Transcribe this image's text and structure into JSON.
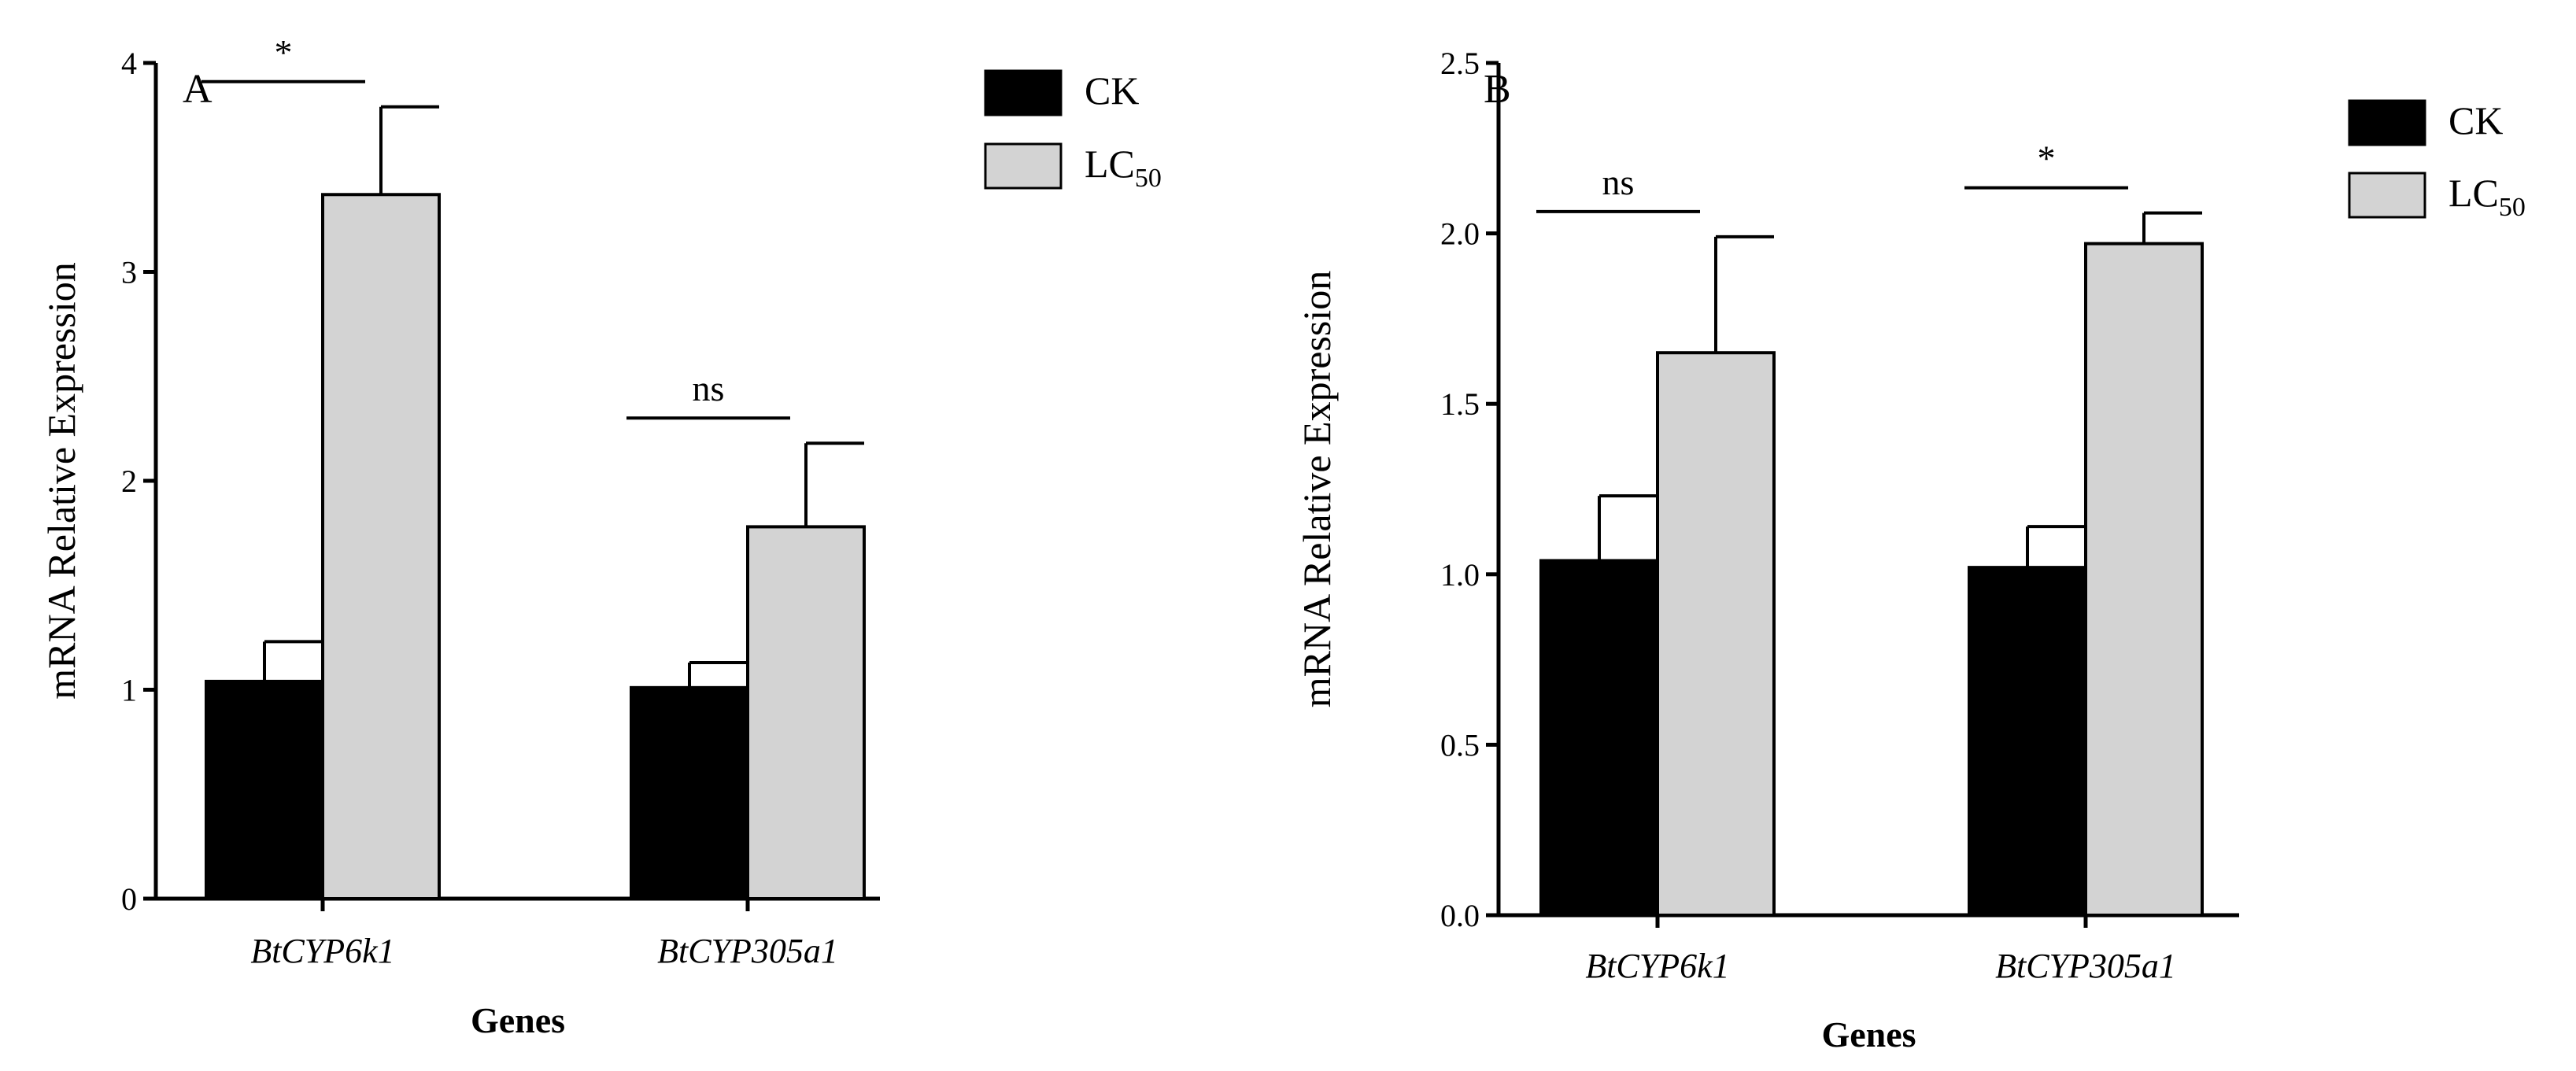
{
  "chart_data": [
    {
      "type": "bar",
      "panel_label": "A",
      "title": "",
      "xlabel": "Genes",
      "ylabel": "mRNA Relative Expression",
      "ylim": [
        0,
        4
      ],
      "yticks": [
        "0",
        "1",
        "2",
        "3",
        "4"
      ],
      "categories": [
        "BtCYP6k1",
        "BtCYP305a1"
      ],
      "series": [
        {
          "name": "CK",
          "values": [
            1.04,
            1.01
          ],
          "errors": [
            0.19,
            0.12
          ],
          "color": "#000000"
        },
        {
          "name": "LC50",
          "values": [
            3.37,
            1.78
          ],
          "errors": [
            0.42,
            0.4
          ],
          "color": "#d3d3d3"
        }
      ],
      "significance": [
        "*",
        "ns"
      ],
      "legend": [
        "CK",
        "LC50"
      ],
      "legend_position": "top-right",
      "grid": false
    },
    {
      "type": "bar",
      "panel_label": "B",
      "title": "",
      "xlabel": "Genes",
      "ylabel": "mRNA Relative Expression",
      "ylim": [
        0,
        2.5
      ],
      "yticks": [
        "0.0",
        "0.5",
        "1.0",
        "1.5",
        "2.0",
        "2.5"
      ],
      "categories": [
        "BtCYP6k1",
        "BtCYP305a1"
      ],
      "series": [
        {
          "name": "CK",
          "values": [
            1.04,
            1.02
          ],
          "errors": [
            0.19,
            0.12
          ],
          "color": "#000000"
        },
        {
          "name": "LC50",
          "values": [
            1.65,
            1.97
          ],
          "errors": [
            0.34,
            0.09
          ],
          "color": "#d3d3d3"
        }
      ],
      "significance": [
        "ns",
        "*"
      ],
      "legend": [
        "CK",
        "LC50"
      ],
      "legend_position": "top-right",
      "grid": false
    }
  ]
}
